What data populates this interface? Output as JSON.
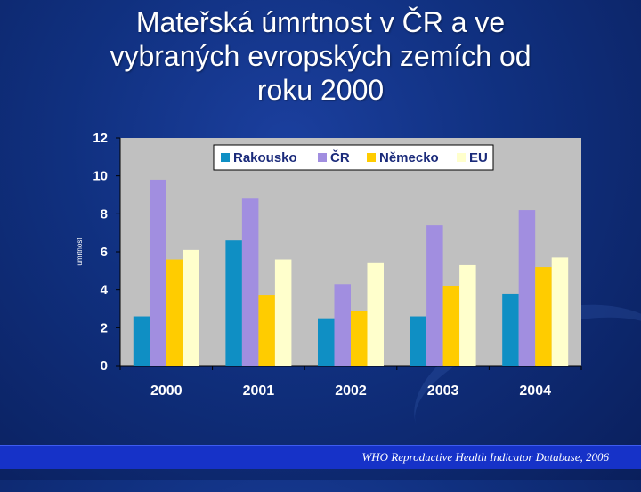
{
  "slide": {
    "title_lines": [
      "Mateřská úmrtnost v ČR a ve",
      "vybraných evropských zemích od",
      "roku 2000"
    ],
    "source": "WHO Reproductive Health Indicator Database, 2006"
  },
  "colors": {
    "plot_bg": "#c0c0c0",
    "legend_bg": "#ffffff",
    "legend_border": "#000000",
    "axis_text": "#ffffff",
    "series": [
      "#0f8fc4",
      "#a18ee0",
      "#ffcc00",
      "#ffffcc"
    ]
  },
  "chart_data": {
    "type": "bar",
    "title": "",
    "xlabel": "",
    "ylabel": "úmrtnost",
    "categories": [
      "2000",
      "2001",
      "2002",
      "2003",
      "2004"
    ],
    "series": [
      {
        "name": "Rakousko",
        "values": [
          2.6,
          6.6,
          2.5,
          2.6,
          3.8
        ]
      },
      {
        "name": "ČR",
        "values": [
          9.8,
          8.8,
          4.3,
          7.4,
          8.2
        ]
      },
      {
        "name": "Německo",
        "values": [
          5.6,
          3.7,
          2.9,
          4.2,
          5.2
        ]
      },
      {
        "name": "EU",
        "values": [
          6.1,
          5.6,
          5.4,
          5.3,
          5.7
        ]
      }
    ],
    "ylim": [
      0,
      12
    ],
    "yticks": [
      0,
      2,
      4,
      6,
      8,
      10,
      12
    ],
    "grid": false,
    "legend_position": "top-right"
  }
}
